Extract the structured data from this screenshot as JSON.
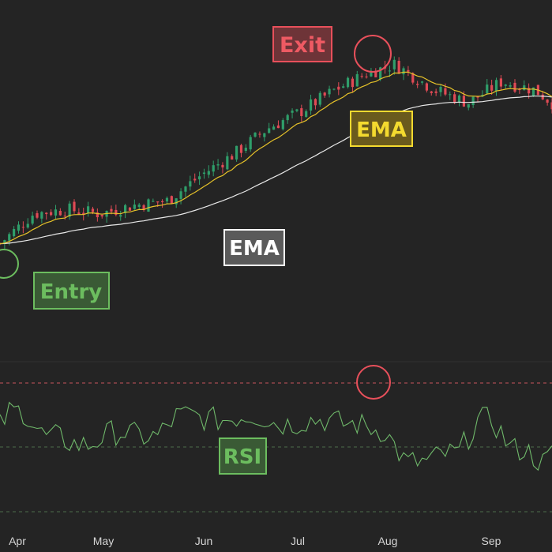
{
  "chart_data": {
    "type": "candlestick+line",
    "months": [
      "Apr",
      "May",
      "Jun",
      "Jul",
      "Aug",
      "Sep"
    ],
    "annotations": {
      "entry": "Entry",
      "exit": "Exit",
      "ema_fast": "EMA",
      "ema_slow": "EMA",
      "rsi": "RSI"
    },
    "price_series": [
      {
        "day": 0,
        "close": 100
      },
      {
        "day": 10,
        "close": 107
      },
      {
        "day": 20,
        "close": 108
      },
      {
        "day": 30,
        "close": 107
      },
      {
        "day": 40,
        "close": 109
      },
      {
        "day": 50,
        "close": 110
      },
      {
        "day": 60,
        "close": 116
      },
      {
        "day": 70,
        "close": 121
      },
      {
        "day": 80,
        "close": 127
      },
      {
        "day": 90,
        "close": 131
      },
      {
        "day": 100,
        "close": 136
      },
      {
        "day": 110,
        "close": 140
      },
      {
        "day": 118,
        "close": 142
      },
      {
        "day": 130,
        "close": 136
      },
      {
        "day": 140,
        "close": 133
      },
      {
        "day": 150,
        "close": 138
      },
      {
        "day": 160,
        "close": 136
      },
      {
        "day": 165,
        "close": 133
      }
    ],
    "rsi_levels": {
      "overbought": 70,
      "midline": 50,
      "oversold": 30
    },
    "colors": {
      "up": "#2f9e6a",
      "down": "#e04a55",
      "ema_fast": "#e6c229",
      "ema_slow": "#e8e8e8",
      "rsi_line": "#6fb86a",
      "entry": "#6cbd5f",
      "exit": "#e8505b"
    }
  }
}
